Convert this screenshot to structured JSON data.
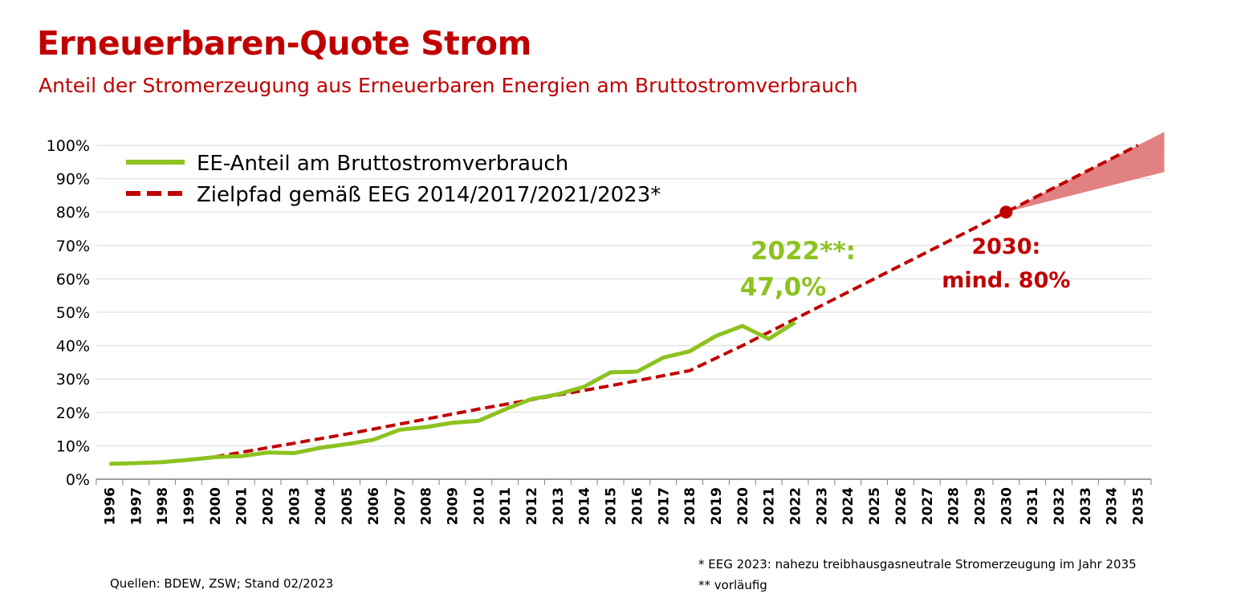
{
  "title": "Erneuerbaren-Quote Strom",
  "subtitle": "Anteil der Stromerzeugung aus Erneuerbaren Energien am Bruttostromverbrauch",
  "colors": {
    "title": "#c00000",
    "actual": "#8dc21f",
    "target": "#c00000",
    "fan": "#e07a7a"
  },
  "chart_data": {
    "type": "line",
    "x": [
      "1996",
      "1997",
      "1998",
      "1999",
      "2000",
      "2001",
      "2002",
      "2003",
      "2004",
      "2005",
      "2006",
      "2007",
      "2008",
      "2009",
      "2010",
      "2011",
      "2012",
      "2013",
      "2014",
      "2015",
      "2016",
      "2017",
      "2018",
      "2019",
      "2020",
      "2021",
      "2022",
      "2023",
      "2024",
      "2025",
      "2026",
      "2027",
      "2028",
      "2029",
      "2030",
      "2031",
      "2032",
      "2033",
      "2034",
      "2035"
    ],
    "ylim": [
      0,
      100
    ],
    "yticks": [
      "0%",
      "10%",
      "20%",
      "30%",
      "40%",
      "50%",
      "60%",
      "70%",
      "80%",
      "90%",
      "100%"
    ],
    "grid": true,
    "legend_position": "top-left",
    "series": [
      {
        "name": "EE-Anteil am Bruttostromverbrauch",
        "style": "solid",
        "points": [
          [
            "1996",
            4.6
          ],
          [
            "1997",
            4.8
          ],
          [
            "1998",
            5.1
          ],
          [
            "1999",
            5.8
          ],
          [
            "2000",
            6.6
          ],
          [
            "2001",
            6.9
          ],
          [
            "2002",
            8.0
          ],
          [
            "2003",
            7.8
          ],
          [
            "2004",
            9.4
          ],
          [
            "2005",
            10.5
          ],
          [
            "2006",
            11.8
          ],
          [
            "2007",
            14.8
          ],
          [
            "2008",
            15.6
          ],
          [
            "2009",
            16.9
          ],
          [
            "2010",
            17.5
          ],
          [
            "2011",
            20.9
          ],
          [
            "2012",
            24.0
          ],
          [
            "2013",
            25.4
          ],
          [
            "2014",
            27.7
          ],
          [
            "2015",
            32.0
          ],
          [
            "2016",
            32.2
          ],
          [
            "2017",
            36.4
          ],
          [
            "2018",
            38.3
          ],
          [
            "2019",
            42.9
          ],
          [
            "2020",
            45.9
          ],
          [
            "2021",
            42.0
          ],
          [
            "2022",
            47.0
          ]
        ]
      },
      {
        "name": "Zielpfad gemäß EEG 2014/2017/2021/2023*",
        "style": "dashed",
        "points": [
          [
            "2000",
            6.7
          ],
          [
            "2005",
            13.5
          ],
          [
            "2010",
            21.0
          ],
          [
            "2015",
            28.0
          ],
          [
            "2018",
            32.5
          ],
          [
            "2020",
            40.0
          ],
          [
            "2030",
            80.0
          ],
          [
            "2035",
            100.0
          ]
        ]
      }
    ],
    "target_range_after_2030": {
      "from_year": "2030",
      "from_value": 80,
      "to_year": "2035",
      "upper": 100,
      "lower": 90
    },
    "annotations": [
      {
        "id": "actual_2022",
        "line1": "2022**:",
        "line2": "47,0%",
        "x": "2022",
        "y": 47.0
      },
      {
        "id": "target_2030",
        "line1": "2030:",
        "line2": "mind. 80%",
        "x": "2030",
        "y": 80
      }
    ]
  },
  "footer": {
    "sources": "Quellen: BDEW, ZSW; Stand 02/2023",
    "footnote1": "* EEG 2023: nahezu treibhausgasneutrale Stromerzeugung im Jahr 2035",
    "footnote2": "** vorläufig"
  }
}
